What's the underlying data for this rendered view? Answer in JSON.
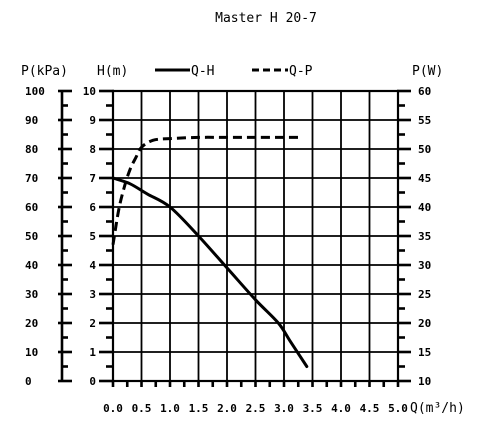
{
  "chart_data": {
    "type": "line",
    "title": "Master H 20-7",
    "xlabel": "Q(m³/h)",
    "axes": {
      "p_kpa": {
        "label": "P(kPa)",
        "range": [
          0,
          100
        ],
        "ticks": [
          "0",
          "10",
          "20",
          "30",
          "40",
          "50",
          "60",
          "70",
          "80",
          "90",
          "100"
        ]
      },
      "h_m": {
        "label": "H(m)",
        "range": [
          0,
          10
        ],
        "ticks": [
          "0",
          "1",
          "2",
          "3",
          "4",
          "5",
          "6",
          "7",
          "8",
          "9",
          "10"
        ]
      },
      "p_w": {
        "label": "P(W)",
        "range": [
          10,
          60
        ],
        "ticks": [
          "10",
          "15",
          "20",
          "25",
          "30",
          "35",
          "40",
          "45",
          "50",
          "55",
          "60"
        ]
      }
    },
    "xlim": [
      0,
      5
    ],
    "xticks": [
      "0.0",
      "0.5",
      "1.0",
      "1.5",
      "2.0",
      "2.5",
      "3.0",
      "3.5",
      "4.0",
      "4.5",
      "5.0"
    ],
    "grid": true,
    "legend_position": "top",
    "series": [
      {
        "name": "Q-H",
        "axis": "h_m",
        "style": "solid",
        "x": [
          0,
          0.3,
          0.6,
          1.0,
          1.5,
          2.0,
          2.5,
          2.9,
          3.1,
          3.4
        ],
        "y": [
          7.0,
          6.8,
          6.45,
          6.0,
          5.0,
          3.9,
          2.8,
          2.0,
          1.4,
          0.5
        ]
      },
      {
        "name": "Q-P",
        "axis": "p_w",
        "style": "dashed",
        "x": [
          0,
          0.1,
          0.2,
          0.3,
          0.4,
          0.5,
          0.7,
          1.0,
          1.5,
          2.0,
          2.5,
          3.0,
          3.3
        ],
        "y": [
          33.5,
          39.5,
          43.5,
          46.5,
          48.5,
          50.3,
          51.5,
          51.8,
          52.0,
          52.0,
          52.0,
          52.0,
          52.0
        ]
      }
    ]
  }
}
